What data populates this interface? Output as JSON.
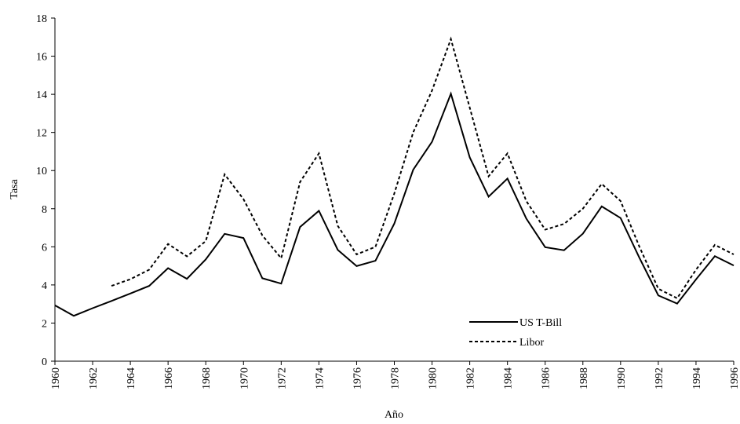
{
  "chart_data": {
    "type": "line",
    "x_label": "Año",
    "y_label": "Tasa",
    "x": [
      1960,
      1961,
      1962,
      1963,
      1964,
      1965,
      1966,
      1967,
      1968,
      1969,
      1970,
      1971,
      1972,
      1973,
      1974,
      1975,
      1976,
      1977,
      1978,
      1979,
      1980,
      1981,
      1982,
      1983,
      1984,
      1985,
      1986,
      1987,
      1988,
      1989,
      1990,
      1991,
      1992,
      1993,
      1994,
      1995,
      1996
    ],
    "series": [
      {
        "name": "US T-Bill",
        "color": "#000000",
        "line_style": "solid",
        "values": [
          2.93,
          2.38,
          2.78,
          3.16,
          3.55,
          3.95,
          4.88,
          4.32,
          5.34,
          6.68,
          6.46,
          4.35,
          4.07,
          7.04,
          7.89,
          5.84,
          4.99,
          5.27,
          7.22,
          10.04,
          11.51,
          14.03,
          10.69,
          8.63,
          9.58,
          7.48,
          5.98,
          5.82,
          6.69,
          8.12,
          7.51,
          5.42,
          3.45,
          3.02,
          4.29,
          5.51,
          5.02
        ]
      },
      {
        "name": "Libor",
        "color": "#000000",
        "line_style": "dotted",
        "values": [
          null,
          null,
          null,
          3.95,
          4.3,
          4.8,
          6.15,
          5.5,
          6.3,
          9.8,
          8.5,
          6.6,
          5.4,
          9.4,
          10.9,
          7.1,
          5.6,
          6.0,
          8.8,
          12.0,
          14.2,
          16.9,
          13.3,
          9.7,
          10.9,
          8.4,
          6.9,
          7.2,
          8.0,
          9.3,
          8.4,
          6.0,
          3.8,
          3.3,
          4.8,
          6.1,
          5.6
        ]
      }
    ],
    "xlim": [
      1960,
      1996
    ],
    "xticks": [
      1960,
      1962,
      1964,
      1966,
      1968,
      1970,
      1972,
      1974,
      1976,
      1978,
      1980,
      1982,
      1984,
      1986,
      1988,
      1990,
      1992,
      1994,
      1996
    ],
    "ylim": [
      0,
      18
    ],
    "yticks": [
      0,
      2,
      4,
      6,
      8,
      10,
      12,
      14,
      16,
      18
    ],
    "grid": false,
    "legend": "lower right"
  }
}
